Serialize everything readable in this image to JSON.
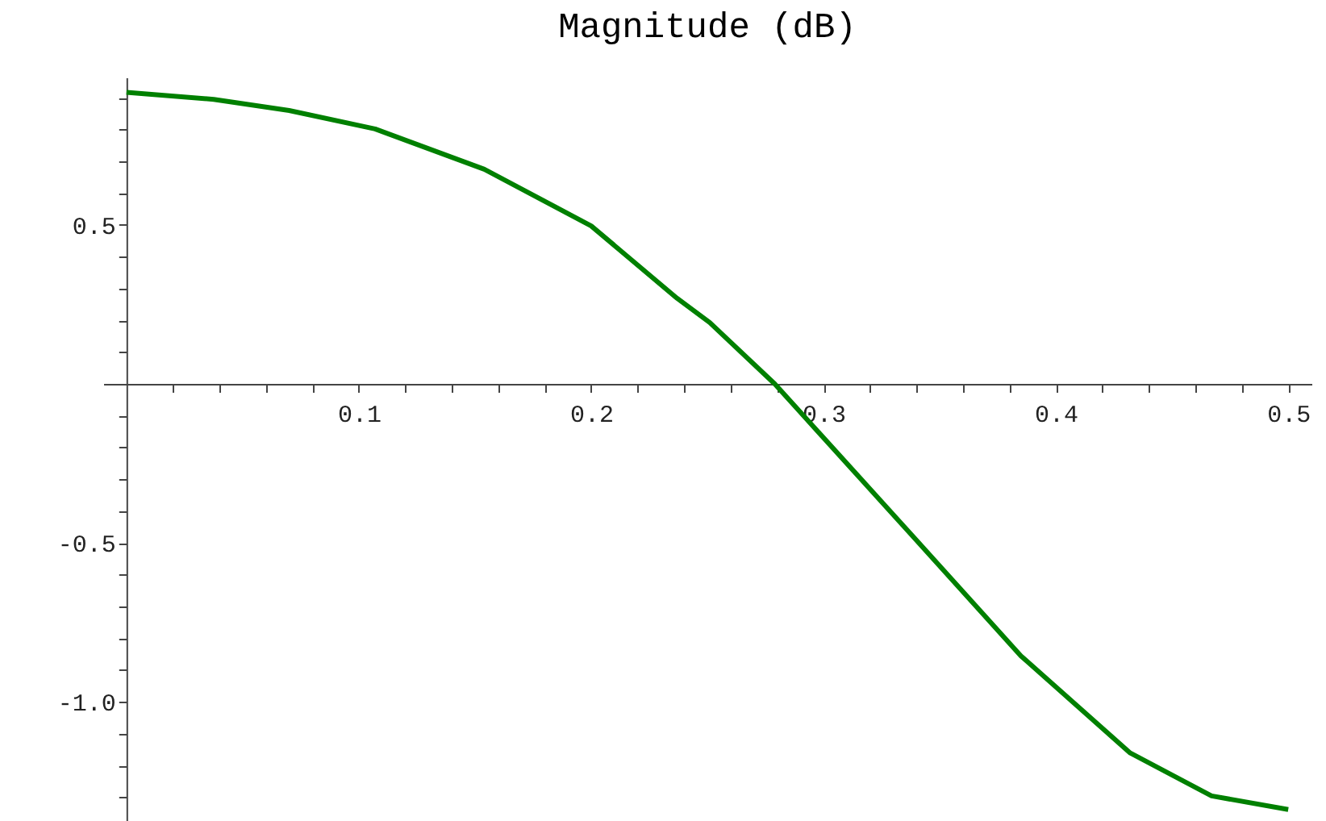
{
  "chart_data": {
    "type": "line",
    "title": "Magnitude (dB)",
    "x": [
      0,
      0.0376,
      0.07,
      0.107,
      0.154,
      0.2,
      0.237,
      0.251,
      0.279,
      0.339,
      0.385,
      0.432,
      0.467,
      0.5
    ],
    "series": [
      {
        "color": "#008000",
        "values": [
          0.917,
          0.895,
          0.86,
          0.802,
          0.675,
          0.497,
          0.269,
          0.193,
          0,
          -0.484,
          -0.856,
          -1.161,
          -1.296,
          -1.339
        ]
      }
    ],
    "xlim": [
      -0.01,
      0.51
    ],
    "ylim": [
      -1.375,
      0.964
    ],
    "xticks": [
      {
        "value": 0.02,
        "label": null
      },
      {
        "value": 0.04,
        "label": null
      },
      {
        "value": 0.06,
        "label": null
      },
      {
        "value": 0.08,
        "label": null
      },
      0.1,
      {
        "value": 0.12,
        "label": null
      },
      {
        "value": 0.14,
        "label": null
      },
      {
        "value": 0.16,
        "label": null
      },
      {
        "value": 0.18,
        "label": null
      },
      0.2,
      {
        "value": 0.22,
        "label": null
      },
      {
        "value": 0.24,
        "label": null
      },
      {
        "value": 0.26,
        "label": null
      },
      {
        "value": 0.28,
        "label": null
      },
      0.3,
      {
        "value": 0.32,
        "label": null
      },
      {
        "value": 0.34,
        "label": null
      },
      {
        "value": 0.36,
        "label": null
      },
      {
        "value": 0.38,
        "label": null
      },
      0.4,
      {
        "value": 0.42,
        "label": null
      },
      {
        "value": 0.44,
        "label": null
      },
      {
        "value": 0.46,
        "label": null
      },
      {
        "value": 0.48,
        "label": null
      },
      0.5
    ],
    "yticks": [
      {
        "value": -1.3,
        "label": null
      },
      {
        "value": -1.2,
        "label": null
      },
      {
        "value": -1.1,
        "label": null
      },
      {
        "value": -1.0,
        "label": "-1.0"
      },
      {
        "value": -0.9,
        "label": null
      },
      {
        "value": -0.8,
        "label": null
      },
      {
        "value": -0.7,
        "label": null
      },
      {
        "value": -0.6,
        "label": null
      },
      -0.5,
      {
        "value": -0.4,
        "label": null
      },
      {
        "value": -0.3,
        "label": null
      },
      {
        "value": -0.2,
        "label": null
      },
      {
        "value": -0.1,
        "label": null
      },
      {
        "value": 0.1,
        "label": null
      },
      {
        "value": 0.2,
        "label": null
      },
      {
        "value": 0.3,
        "label": null
      },
      {
        "value": 0.4,
        "label": null
      },
      0.5,
      {
        "value": 0.6,
        "label": null
      },
      {
        "value": 0.7,
        "label": null
      },
      {
        "value": 0.8,
        "label": null
      },
      {
        "value": 0.9,
        "label": null
      }
    ],
    "grid": false,
    "line_style": "solid",
    "marker": "none"
  }
}
